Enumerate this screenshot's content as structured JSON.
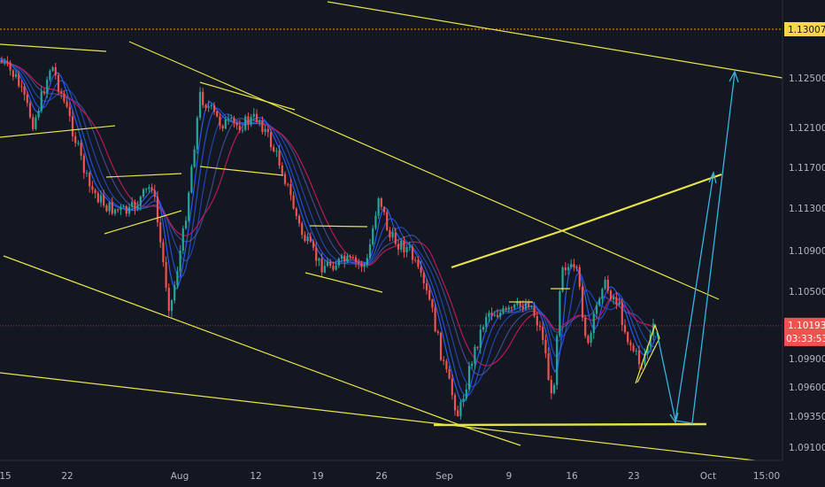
{
  "chart_data": {
    "type": "candlestick",
    "y_ticks": [
      "1.12500",
      "1.12100",
      "1.11700",
      "1.11300",
      "1.10900",
      "1.10500",
      "1.09900",
      "1.09600",
      "1.09350",
      "1.09100"
    ],
    "y_tick_values": [
      1.125,
      1.121,
      1.117,
      1.113,
      1.109,
      1.105,
      1.099,
      1.096,
      1.0935,
      1.091
    ],
    "x_ticks": [
      "15",
      "22",
      "Aug",
      "12",
      "19",
      "26",
      "Sep",
      "9",
      "16",
      "23",
      "Oct",
      "15:00"
    ],
    "price_labels": {
      "level_line": "1.13007",
      "current_price": "1.10193",
      "countdown": "03:33:53"
    },
    "colors": {
      "background": "#131722",
      "up": "#26a69a",
      "down": "#ef5350",
      "trendline": "#e8e34a",
      "projection": "#36b4e0",
      "ma_slow": "#c2185b",
      "ma_fast": "#2962ff",
      "level_line": "#ff9800",
      "level_tag_bg": "#ffd54f",
      "current_tag_bg": "#ef5350"
    }
  }
}
